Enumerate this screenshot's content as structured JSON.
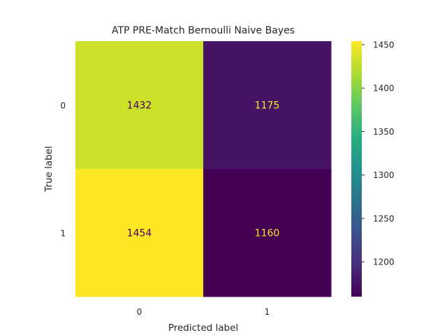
{
  "chart_data": {
    "type": "heatmap",
    "title": "ATP PRE-Match Bernoulli Naive Bayes",
    "xlabel": "Predicted label",
    "ylabel": "True label",
    "x_categories": [
      "0",
      "1"
    ],
    "y_categories": [
      "0",
      "1"
    ],
    "matrix": [
      [
        1432,
        1175
      ],
      [
        1454,
        1160
      ]
    ],
    "colormap": "viridis",
    "colorbar": {
      "range": [
        1160,
        1454
      ],
      "ticks": [
        1200,
        1250,
        1300,
        1350,
        1400,
        1450
      ]
    },
    "grid": false
  },
  "colors": {
    "dark_text": "#440154",
    "light_text": "#fde725",
    "axis_text": "#262626"
  }
}
